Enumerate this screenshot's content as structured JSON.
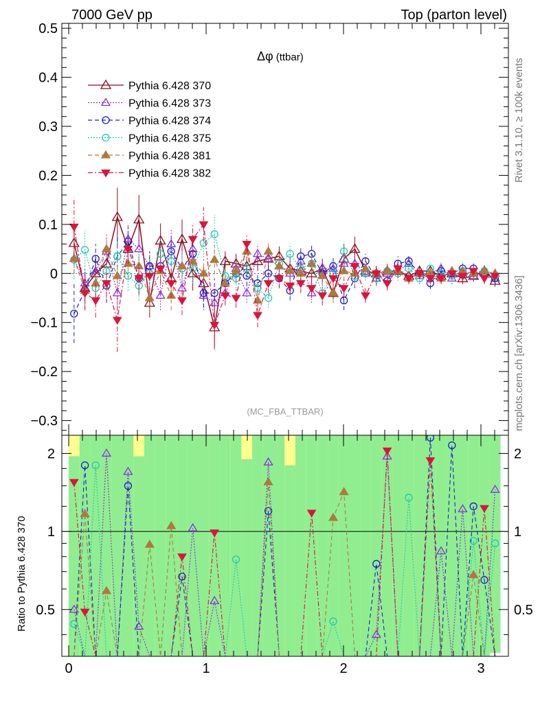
{
  "header": {
    "energy_label": "7000 GeV pp",
    "process_label": "Top (parton level)",
    "rivet_label": "Rivet 3.1.10, ≥ 100k events",
    "mcplots_label": "mcplots.cern.ch [arXiv:1306.3436]"
  },
  "chart_data": [
    {
      "type": "line",
      "title": "Δφ (ttbar)",
      "title_symbol": "Δφ",
      "title_rest": "(ttbar)",
      "analysis_label": "(MC_FBA_TTBAR)",
      "xlim": [
        -0.05,
        3.2
      ],
      "ylim": [
        -0.33,
        0.51
      ],
      "yticks": [
        -0.3,
        -0.2,
        -0.1,
        0,
        0.1,
        0.2,
        0.3,
        0.4,
        0.5
      ],
      "ytick_labels": [
        "−0.3",
        "−0.2",
        "−0.1",
        "0",
        "0.1",
        "0.2",
        "0.3",
        "0.4",
        "0.5"
      ],
      "legend_position": "top-left",
      "x": [
        0.039,
        0.118,
        0.196,
        0.275,
        0.354,
        0.432,
        0.511,
        0.589,
        0.668,
        0.746,
        0.825,
        0.903,
        0.982,
        1.061,
        1.139,
        1.218,
        1.296,
        1.375,
        1.453,
        1.532,
        1.611,
        1.689,
        1.768,
        1.846,
        1.925,
        2.003,
        2.082,
        2.16,
        2.239,
        2.318,
        2.396,
        2.475,
        2.553,
        2.632,
        2.71,
        2.789,
        2.867,
        2.946,
        3.025,
        3.103
      ],
      "series": [
        {
          "name": "Pythia 6.428 370",
          "color": "#8b0a1e",
          "marker": "triangle-open",
          "dash": "solid",
          "values": [
            0.062,
            -0.03,
            0.0,
            0.02,
            0.115,
            0.05,
            0.11,
            -0.06,
            0.067,
            -0.01,
            0.07,
            0.0,
            -0.02,
            -0.11,
            0.025,
            0.02,
            0.015,
            0.025,
            0.03,
            0.035,
            0.01,
            0.005,
            0.0,
            0.01,
            -0.04,
            0.03,
            0.05,
            0.005,
            0.0,
            0.005,
            0.005,
            -0.005,
            0.005,
            0.005,
            -0.005,
            0.0,
            -0.01,
            -0.005,
            0.005,
            -0.015
          ],
          "errors": [
            0.03,
            0.03,
            0.03,
            0.035,
            0.06,
            0.03,
            0.05,
            0.03,
            0.035,
            0.02,
            0.04,
            0.035,
            0.035,
            0.04,
            0.02,
            0.02,
            0.02,
            0.02,
            0.025,
            0.02,
            0.025,
            0.02,
            0.02,
            0.02,
            0.02,
            0.03,
            0.025,
            0.015,
            0.015,
            0.015,
            0.015,
            0.01,
            0.01,
            0.012,
            0.012,
            0.012,
            0.012,
            0.012,
            0.012,
            0.012
          ]
        },
        {
          "name": "Pythia 6.428 373",
          "color": "#8a2be2",
          "marker": "triangle-open",
          "dash": "dotted",
          "values": [
            0.03,
            -0.02,
            0.005,
            0.045,
            -0.04,
            0.07,
            0.05,
            0.015,
            -0.045,
            0.06,
            -0.03,
            0.05,
            -0.045,
            -0.06,
            -0.04,
            0.01,
            -0.04,
            0.04,
            0.03,
            0.015,
            0.0,
            0.025,
            -0.04,
            0.01,
            0.01,
            0.02,
            0.02,
            0.0,
            -0.01,
            0.0,
            0.005,
            0.02,
            -0.005,
            0.0,
            0.01,
            -0.01,
            0.0,
            -0.005,
            0.0,
            -0.01
          ],
          "errors": [
            0.03,
            0.03,
            0.03,
            0.03,
            0.03,
            0.03,
            0.03,
            0.03,
            0.03,
            0.03,
            0.03,
            0.03,
            0.03,
            0.03,
            0.02,
            0.02,
            0.02,
            0.02,
            0.02,
            0.02,
            0.02,
            0.02,
            0.02,
            0.02,
            0.02,
            0.02,
            0.02,
            0.015,
            0.015,
            0.015,
            0.015,
            0.012,
            0.012,
            0.012,
            0.012,
            0.012,
            0.012,
            0.012,
            0.012,
            0.012
          ]
        },
        {
          "name": "Pythia 6.428 374",
          "color": "#1c1cc8",
          "marker": "circle-open",
          "dash": "dashed",
          "values": [
            -0.082,
            -0.035,
            0.03,
            -0.025,
            0.035,
            0.065,
            -0.01,
            0.015,
            0.015,
            0.045,
            0.01,
            0.04,
            -0.04,
            -0.04,
            -0.02,
            0.0,
            -0.005,
            -0.02,
            0.0,
            -0.01,
            -0.035,
            0.035,
            0.04,
            0.0,
            0.015,
            -0.055,
            -0.01,
            0.025,
            -0.01,
            -0.015,
            0.02,
            0.025,
            0.0,
            -0.02,
            0.005,
            0.0,
            0.01,
            0.01,
            0.0,
            -0.01
          ],
          "errors": [
            0.06,
            0.04,
            0.03,
            0.035,
            0.04,
            0.03,
            0.035,
            0.03,
            0.03,
            0.03,
            0.03,
            0.03,
            0.03,
            0.03,
            0.02,
            0.02,
            0.02,
            0.02,
            0.02,
            0.02,
            0.02,
            0.02,
            0.02,
            0.02,
            0.02,
            0.02,
            0.02,
            0.015,
            0.015,
            0.015,
            0.015,
            0.012,
            0.012,
            0.012,
            0.012,
            0.012,
            0.012,
            0.012,
            0.012,
            0.012
          ]
        },
        {
          "name": "Pythia 6.428 375",
          "color": "#20c8b4",
          "marker": "circle-open",
          "dash": "dotted",
          "values": [
            0.028,
            0.048,
            -0.03,
            0.005,
            0.035,
            -0.005,
            -0.025,
            0.0,
            0.04,
            0.025,
            0.01,
            0.01,
            0.062,
            0.08,
            -0.005,
            -0.01,
            0.01,
            -0.03,
            -0.05,
            0.02,
            0.04,
            0.01,
            0.02,
            -0.04,
            0.0,
            0.045,
            -0.005,
            0.0,
            -0.01,
            0.005,
            0.0,
            0.01,
            -0.01,
            0.01,
            0.0,
            -0.005,
            0.005,
            0.0,
            0.005,
            -0.005
          ],
          "errors": [
            0.04,
            0.04,
            0.03,
            0.03,
            0.03,
            0.03,
            0.03,
            0.03,
            0.03,
            0.03,
            0.03,
            0.03,
            0.035,
            0.04,
            0.02,
            0.02,
            0.02,
            0.02,
            0.02,
            0.02,
            0.02,
            0.02,
            0.02,
            0.02,
            0.02,
            0.02,
            0.02,
            0.015,
            0.015,
            0.015,
            0.015,
            0.012,
            0.012,
            0.012,
            0.012,
            0.012,
            0.012,
            0.012,
            0.012,
            0.012
          ]
        },
        {
          "name": "Pythia 6.428 381",
          "color": "#b07840",
          "marker": "triangle-filled",
          "dash": "dashed",
          "values": [
            0.03,
            -0.035,
            -0.02,
            0.05,
            -0.005,
            0.02,
            0.015,
            -0.05,
            0.005,
            -0.045,
            0.015,
            0.025,
            0.0,
            0.028,
            -0.02,
            0.005,
            0.045,
            -0.055,
            0.045,
            0.015,
            0.005,
            0.0,
            0.02,
            -0.005,
            -0.04,
            0.005,
            0.0,
            0.01,
            0.0,
            0.005,
            0.005,
            -0.01,
            0.0,
            0.0,
            -0.01,
            0.005,
            0.005,
            0.0,
            0.005,
            0.0
          ],
          "errors": [
            0.03,
            0.03,
            0.03,
            0.03,
            0.03,
            0.03,
            0.03,
            0.03,
            0.03,
            0.03,
            0.03,
            0.03,
            0.03,
            0.03,
            0.02,
            0.02,
            0.02,
            0.02,
            0.02,
            0.02,
            0.02,
            0.02,
            0.02,
            0.02,
            0.02,
            0.02,
            0.02,
            0.015,
            0.015,
            0.015,
            0.015,
            0.012,
            0.012,
            0.012,
            0.012,
            0.012,
            0.012,
            0.012,
            0.012,
            0.012
          ]
        },
        {
          "name": "Pythia 6.428 382",
          "color": "#dc143c",
          "marker": "triangle-down-filled",
          "dash": "dashdot",
          "values": [
            0.095,
            -0.04,
            -0.055,
            -0.02,
            -0.095,
            0.05,
            -0.01,
            -0.005,
            0.01,
            -0.02,
            -0.055,
            0.07,
            0.1,
            -0.105,
            -0.045,
            -0.05,
            0.06,
            -0.085,
            -0.02,
            -0.01,
            -0.025,
            -0.02,
            -0.03,
            -0.045,
            -0.01,
            -0.03,
            0.015,
            -0.045,
            0.0,
            -0.02,
            0.01,
            -0.01,
            0.0,
            -0.01,
            -0.01,
            0.0,
            -0.005,
            0.005,
            -0.01,
            -0.005
          ],
          "errors": [
            0.06,
            0.035,
            0.035,
            0.03,
            0.065,
            0.03,
            0.03,
            0.03,
            0.03,
            0.03,
            0.03,
            0.03,
            0.035,
            0.05,
            0.02,
            0.02,
            0.02,
            0.025,
            0.02,
            0.02,
            0.02,
            0.02,
            0.02,
            0.02,
            0.02,
            0.02,
            0.02,
            0.015,
            0.015,
            0.015,
            0.015,
            0.012,
            0.012,
            0.012,
            0.012,
            0.012,
            0.012,
            0.012,
            0.012,
            0.012
          ]
        }
      ]
    },
    {
      "type": "line",
      "ylabel": "Ratio to Pythia 6.428 370",
      "xlim": [
        -0.05,
        3.2
      ],
      "ylim": [
        0.33,
        2.35
      ],
      "ylog": true,
      "xticks": [
        0,
        1,
        2,
        3
      ],
      "xtick_labels": [
        "0",
        "1",
        "2",
        "3"
      ],
      "yticks": [
        0.5,
        1,
        2
      ],
      "ytick_labels": [
        "0.5",
        "1",
        "2"
      ],
      "band_colors": {
        "inner": "#90ee90",
        "outer": "#ffff90"
      },
      "band_inner_low": [
        0.33,
        0.33,
        0.33,
        0.33,
        0.33,
        0.33,
        0.33,
        0.33,
        0.33,
        0.33,
        0.33,
        0.33,
        0.33,
        0.33,
        0.33,
        0.33,
        0.33,
        0.33,
        0.33,
        0.33,
        0.33,
        0.33,
        0.33,
        0.33,
        0.33,
        0.33,
        0.33,
        0.33,
        0.33,
        0.33,
        0.33,
        0.33,
        0.33,
        0.33,
        0.33,
        0.33,
        0.33,
        0.33,
        0.33,
        0.34
      ],
      "band_inner_high": [
        1.95,
        2.35,
        2.35,
        2.35,
        2.35,
        2.35,
        1.95,
        2.35,
        2.35,
        2.35,
        2.35,
        2.35,
        2.35,
        2.35,
        2.35,
        2.35,
        1.9,
        2.35,
        2.35,
        2.35,
        1.8,
        2.35,
        2.35,
        2.35,
        2.35,
        2.35,
        2.35,
        2.35,
        2.35,
        2.35,
        2.35,
        2.35,
        2.35,
        2.35,
        2.35,
        2.35,
        2.35,
        2.35,
        2.35,
        2.35
      ],
      "band_outer_high": [
        2.35,
        2.35,
        2.35,
        2.35,
        2.35,
        2.35,
        2.35,
        2.35,
        2.35,
        2.35,
        2.35,
        2.35,
        2.35,
        2.35,
        2.35,
        2.35,
        2.35,
        2.35,
        2.35,
        2.35,
        2.35,
        2.35,
        2.35,
        2.35,
        2.35,
        2.35,
        2.35,
        2.35,
        2.35,
        2.35,
        2.35,
        2.35,
        2.35,
        2.35,
        2.35,
        2.35,
        2.35,
        2.35,
        2.35,
        2.35
      ],
      "series": [
        {
          "name": "Pythia 6.428 373",
          "color": "#8a2be2",
          "marker": "triangle-open",
          "dash": "dotted",
          "values": [
            0.5,
            0.33,
            0.33,
            2.0,
            0.33,
            1.7,
            0.43,
            0.33,
            0.33,
            0.33,
            0.33,
            1.03,
            0.33,
            0.54,
            0.33,
            0.33,
            0.33,
            0.33,
            1.85,
            0.33,
            0.33,
            0.33,
            0.33,
            0.33,
            0.33,
            0.33,
            0.33,
            0.33,
            0.4,
            1.95,
            0.33,
            0.33,
            0.33,
            0.33,
            0.84,
            0.33,
            1.22,
            0.33,
            0.33,
            1.45
          ]
        },
        {
          "name": "Pythia 6.428 374",
          "color": "#1c1cc8",
          "marker": "circle-open",
          "dash": "dashed",
          "values": [
            0.33,
            1.8,
            0.33,
            0.33,
            0.33,
            1.5,
            0.33,
            0.33,
            0.33,
            0.33,
            0.67,
            0.33,
            0.33,
            0.33,
            0.33,
            0.33,
            0.33,
            0.33,
            1.2,
            0.33,
            0.33,
            0.33,
            0.33,
            0.33,
            0.33,
            0.33,
            0.33,
            0.33,
            0.75,
            0.33,
            0.33,
            0.33,
            0.33,
            2.3,
            0.33,
            2.15,
            0.33,
            1.25,
            0.65,
            0.33
          ]
        },
        {
          "name": "Pythia 6.428 375",
          "color": "#20c8b4",
          "marker": "circle-open",
          "dash": "dotted",
          "values": [
            0.44,
            0.33,
            1.8,
            0.33,
            0.33,
            0.33,
            0.33,
            0.33,
            0.33,
            0.33,
            0.33,
            0.33,
            0.33,
            0.33,
            0.33,
            0.78,
            0.33,
            0.33,
            0.33,
            0.33,
            0.33,
            0.33,
            0.33,
            0.33,
            0.45,
            0.33,
            0.33,
            0.33,
            0.33,
            0.33,
            0.33,
            1.35,
            0.33,
            0.33,
            0.33,
            0.33,
            0.33,
            0.92,
            0.33,
            0.9
          ]
        },
        {
          "name": "Pythia 6.428 381",
          "color": "#b07840",
          "marker": "triangle-filled",
          "dash": "dashed",
          "values": [
            0.33,
            1.17,
            0.33,
            0.59,
            0.33,
            0.33,
            0.33,
            0.89,
            0.33,
            1.05,
            0.33,
            0.33,
            0.33,
            0.33,
            0.33,
            0.33,
            0.33,
            0.33,
            1.55,
            0.33,
            0.33,
            0.33,
            0.33,
            0.33,
            1.13,
            1.42,
            0.33,
            0.33,
            0.33,
            0.33,
            0.33,
            0.33,
            0.33,
            0.33,
            0.33,
            0.33,
            0.33,
            0.68,
            0.33,
            0.33
          ]
        },
        {
          "name": "Pythia 6.428 382",
          "color": "#dc143c",
          "marker": "triangle-down-filled",
          "dash": "dashdot",
          "values": [
            1.55,
            0.49,
            0.33,
            0.33,
            0.33,
            0.33,
            0.33,
            0.33,
            0.33,
            0.33,
            0.8,
            0.33,
            0.33,
            0.99,
            0.33,
            0.33,
            0.33,
            0.33,
            0.33,
            0.33,
            0.33,
            0.33,
            1.18,
            0.33,
            0.33,
            0.33,
            0.33,
            0.33,
            0.33,
            2.05,
            0.33,
            0.33,
            0.33,
            1.88,
            0.33,
            0.33,
            0.33,
            0.33,
            1.23,
            0.33
          ]
        }
      ]
    }
  ]
}
